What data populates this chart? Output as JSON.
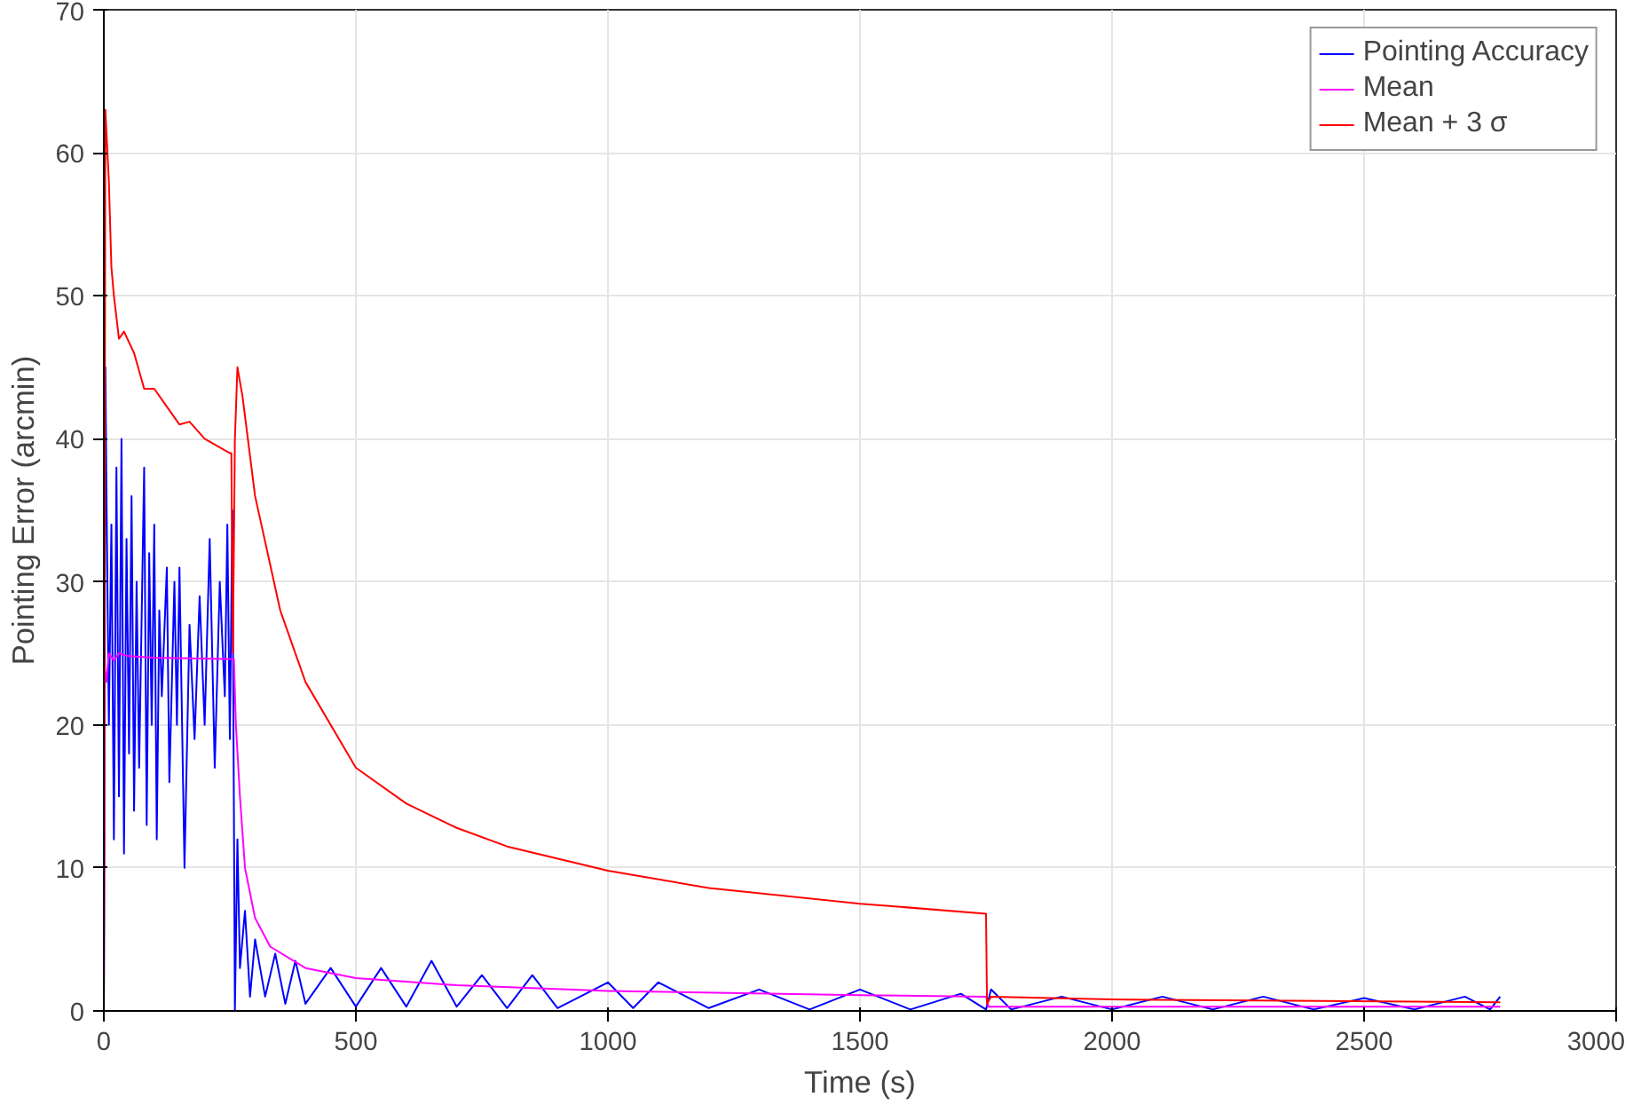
{
  "chart_data": {
    "type": "line",
    "xlabel": "Time (s)",
    "ylabel": "Pointing Error (arcmin)",
    "xlim": [
      0,
      3000
    ],
    "ylim": [
      0,
      70
    ],
    "xticks": [
      0,
      500,
      1000,
      1500,
      2000,
      2500,
      3000
    ],
    "yticks": [
      0,
      10,
      20,
      30,
      40,
      50,
      60,
      70
    ],
    "grid": true,
    "legend": "top right",
    "marker": "none",
    "line_style": "solid",
    "series": [
      {
        "name": "Pointing Accuracy",
        "color": "#0000ff",
        "x": [
          0,
          3,
          5,
          10,
          15,
          20,
          25,
          30,
          35,
          40,
          45,
          50,
          55,
          60,
          65,
          70,
          80,
          85,
          90,
          95,
          100,
          105,
          110,
          115,
          125,
          130,
          140,
          145,
          150,
          160,
          170,
          180,
          190,
          200,
          210,
          220,
          230,
          240,
          245,
          250,
          255,
          260,
          265,
          270,
          280,
          290,
          300,
          320,
          340,
          360,
          380,
          400,
          450,
          500,
          550,
          600,
          650,
          700,
          750,
          800,
          850,
          900,
          1000,
          1050,
          1100,
          1200,
          1300,
          1400,
          1500,
          1600,
          1700,
          1750,
          1760,
          1800,
          1900,
          2000,
          2100,
          2200,
          2300,
          2400,
          2500,
          2600,
          2700,
          2750,
          2770
        ],
        "values": [
          0,
          45,
          37,
          20,
          34,
          12,
          38,
          15,
          40,
          11,
          33,
          18,
          36,
          14,
          30,
          17,
          38,
          13,
          32,
          20,
          34,
          12,
          28,
          22,
          31,
          16,
          30,
          20,
          31,
          10,
          27,
          19,
          29,
          20,
          33,
          17,
          30,
          22,
          34,
          19,
          35,
          0,
          12,
          3,
          7,
          1,
          5,
          1,
          4,
          0.5,
          3.5,
          0.5,
          3,
          0.3,
          3,
          0.3,
          3.5,
          0.3,
          2.5,
          0.2,
          2.5,
          0.2,
          2,
          0.2,
          2,
          0.2,
          1.5,
          0.1,
          1.5,
          0.1,
          1.2,
          0.1,
          1.5,
          0.1,
          1,
          0.1,
          1,
          0.1,
          1,
          0.1,
          0.9,
          0.1,
          1,
          0.1,
          1
        ]
      },
      {
        "name": "Mean",
        "color": "#ff00ff",
        "x": [
          0,
          2,
          5,
          10,
          20,
          30,
          50,
          100,
          250,
          258,
          262,
          270,
          280,
          300,
          330,
          400,
          500,
          700,
          1000,
          1500,
          1750,
          1755,
          2000,
          2770
        ],
        "values": [
          0,
          24,
          23,
          25,
          24.5,
          25,
          24.8,
          24.7,
          24.6,
          24.6,
          20,
          15,
          10,
          6.5,
          4.5,
          3,
          2.3,
          1.8,
          1.4,
          1.1,
          1,
          0.3,
          0.3,
          0.3
        ]
      },
      {
        "name": "Mean + 3 σ",
        "color": "#ff0000",
        "x": [
          0,
          3,
          10,
          15,
          20,
          30,
          40,
          60,
          80,
          100,
          120,
          150,
          170,
          200,
          250,
          253,
          256,
          260,
          265,
          275,
          300,
          350,
          400,
          500,
          600,
          700,
          800,
          1000,
          1200,
          1500,
          1750,
          1752,
          1760,
          2000,
          2770
        ],
        "values": [
          0,
          63,
          58,
          52,
          50,
          47,
          47.5,
          46,
          43.5,
          43.5,
          42.5,
          41,
          41.2,
          40,
          39,
          39,
          25,
          40,
          45,
          43,
          36,
          28,
          23,
          17,
          14.5,
          12.8,
          11.5,
          9.8,
          8.6,
          7.5,
          6.8,
          0.5,
          1,
          0.8,
          0.6
        ]
      }
    ]
  }
}
